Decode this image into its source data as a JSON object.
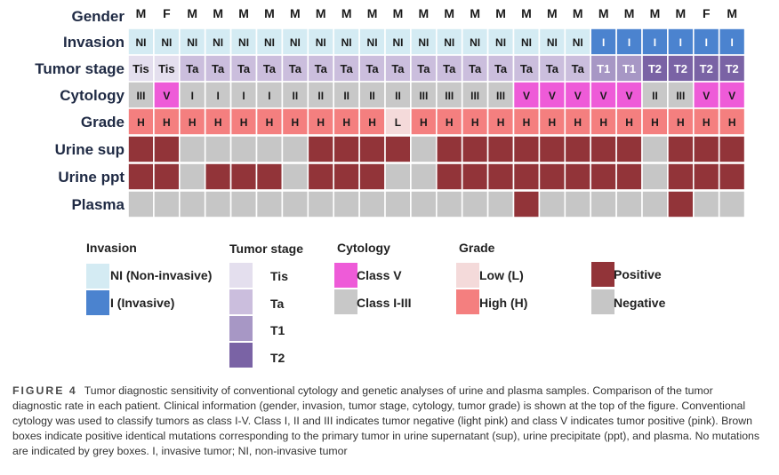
{
  "chart_data": {
    "type": "heatmap",
    "rows": [
      "Gender",
      "Invasion",
      "Tumor stage",
      "Cytology",
      "Grade",
      "Urine sup",
      "Urine ppt",
      "Plasma"
    ],
    "n_columns": 24,
    "gender": [
      "M",
      "F",
      "M",
      "M",
      "M",
      "M",
      "M",
      "M",
      "M",
      "M",
      "M",
      "M",
      "M",
      "M",
      "M",
      "M",
      "M",
      "M",
      "M",
      "M",
      "M",
      "M",
      "F",
      "M"
    ],
    "invasion": [
      "NI",
      "NI",
      "NI",
      "NI",
      "NI",
      "NI",
      "NI",
      "NI",
      "NI",
      "NI",
      "NI",
      "NI",
      "NI",
      "NI",
      "NI",
      "NI",
      "NI",
      "NI",
      "I",
      "I",
      "I",
      "I",
      "I",
      "I"
    ],
    "tumor_stage": [
      "Tis",
      "Tis",
      "Ta",
      "Ta",
      "Ta",
      "Ta",
      "Ta",
      "Ta",
      "Ta",
      "Ta",
      "Ta",
      "Ta",
      "Ta",
      "Ta",
      "Ta",
      "Ta",
      "Ta",
      "Ta",
      "T1",
      "T1",
      "T2",
      "T2",
      "T2",
      "T2"
    ],
    "cytology": [
      "III",
      "V",
      "I",
      "I",
      "I",
      "I",
      "II",
      "II",
      "II",
      "II",
      "II",
      "III",
      "III",
      "III",
      "III",
      "V",
      "V",
      "V",
      "V",
      "V",
      "II",
      "III",
      "V",
      "V"
    ],
    "grade": [
      "H",
      "H",
      "H",
      "H",
      "H",
      "H",
      "H",
      "H",
      "H",
      "H",
      "L",
      "H",
      "H",
      "H",
      "H",
      "H",
      "H",
      "H",
      "H",
      "H",
      "H",
      "H",
      "H",
      "H"
    ],
    "urine_sup": [
      "P",
      "P",
      "N",
      "N",
      "N",
      "N",
      "N",
      "P",
      "P",
      "P",
      "P",
      "N",
      "P",
      "P",
      "P",
      "P",
      "P",
      "P",
      "P",
      "P",
      "N",
      "P",
      "P",
      "P"
    ],
    "urine_ppt": [
      "P",
      "P",
      "N",
      "P",
      "P",
      "P",
      "N",
      "P",
      "P",
      "P",
      "N",
      "N",
      "P",
      "P",
      "P",
      "P",
      "P",
      "P",
      "P",
      "P",
      "N",
      "P",
      "P",
      "P"
    ],
    "plasma": [
      "N",
      "N",
      "N",
      "N",
      "N",
      "N",
      "N",
      "N",
      "N",
      "N",
      "N",
      "N",
      "N",
      "N",
      "N",
      "P",
      "N",
      "N",
      "N",
      "N",
      "N",
      "P",
      "N",
      "N"
    ],
    "value_labels": {
      "invasion": {
        "NI": "NI",
        "I": "I"
      },
      "grade": {
        "H": "H",
        "L": "L"
      }
    }
  },
  "colors": {
    "NI": "#d4ebf3",
    "I": "#4b83cf",
    "Tis": "#e4dfee",
    "Ta": "#cbbedd",
    "T1": "#a797c5",
    "T2": "#7a63a5",
    "cyto_V": "#ee5bd8",
    "cyto_low": "#c8c8c8",
    "grade_L": "#f4dada",
    "grade_H": "#f47f7f",
    "positive": "#923439",
    "negative": "#c6c6c6"
  },
  "legend": {
    "invasion": {
      "title": "Invasion",
      "items": [
        "NI (Non-invasive)",
        "I (Invasive)"
      ]
    },
    "tumor_stage": {
      "title": "Tumor stage",
      "items": [
        "Tis",
        "Ta",
        "T1",
        "T2"
      ]
    },
    "cytology": {
      "title": "Cytology",
      "items": [
        "Class V",
        "Class I-III"
      ]
    },
    "grade": {
      "title": "Grade",
      "items": [
        "Low (L)",
        "High (H)"
      ]
    },
    "mutation": {
      "items": [
        "Positive",
        "Negative"
      ]
    }
  },
  "caption": {
    "label": "FIGURE 4",
    "text": "Tumor diagnostic sensitivity of conventional cytology and genetic analyses of urine and plasma samples. Comparison of the tumor diagnostic rate in each patient. Clinical information (gender, invasion, tumor stage, cytology, tumor grade) is shown at the top of the figure. Conventional cytology was used to classify tumors as class I-V. Class I, II and III indicates tumor negative (light pink) and class V indicates tumor positive (pink). Brown boxes indicate positive identical mutations corresponding to the primary tumor in urine supernatant (sup), urine precipitate (ppt), and plasma. No mutations are indicated by grey boxes. I, invasive tumor; NI, non-invasive tumor"
  }
}
